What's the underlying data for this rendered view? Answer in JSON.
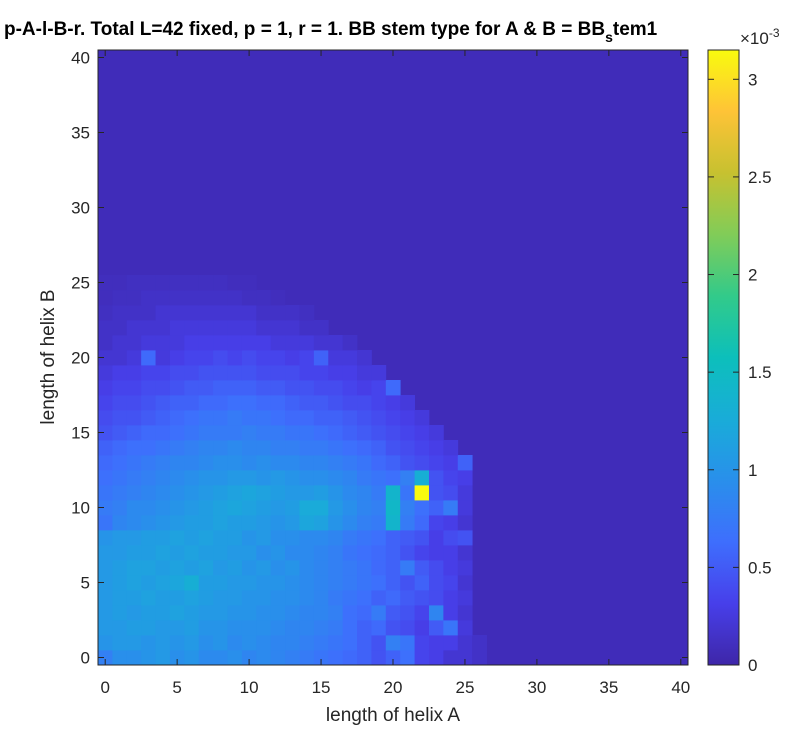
{
  "chart_data": {
    "type": "heatmap",
    "title": "p-A-l-B-r. Total L=42 fixed, p = 1,  r  = 1. BB stem type for A & B = BB",
    "title_sub": "s",
    "title_tail": "tem1",
    "xlabel": "length of helix A",
    "ylabel": "length of helix B",
    "xlim": [
      -0.5,
      40.5
    ],
    "ylim": [
      -0.5,
      40.5
    ],
    "xticks": [
      0,
      5,
      10,
      15,
      20,
      25,
      30,
      35,
      40
    ],
    "yticks": [
      0,
      5,
      10,
      15,
      20,
      25,
      30,
      35,
      40
    ],
    "colormap": "parula",
    "colorbar": {
      "clim": [
        0,
        3.15
      ],
      "ticks": [
        0,
        0.5,
        1,
        1.5,
        2,
        2.5,
        3
      ],
      "tick_labels": [
        "0",
        "0.5",
        "1",
        "1.5",
        "2",
        "2.5",
        "3"
      ],
      "exponent_label": "×10",
      "exponent_power": "-3"
    },
    "background_value": 0.08,
    "rows": [
      {
        "y": 0,
        "values": [
          0.8,
          0.95,
          0.95,
          1.0,
          1.05,
          0.95,
          1.0,
          0.9,
          0.9,
          0.95,
          0.85,
          0.9,
          0.85,
          0.8,
          0.75,
          0.7,
          0.65,
          0.6,
          0.55,
          0.45,
          0.55,
          0.65,
          0.35,
          0.3,
          0.2,
          0.2,
          0.15
        ]
      },
      {
        "y": 1,
        "values": [
          1.0,
          1.05,
          1.05,
          1.0,
          1.05,
          1.0,
          1.05,
          0.95,
          1.0,
          0.9,
          0.95,
          0.9,
          0.85,
          0.85,
          0.8,
          0.75,
          0.7,
          0.65,
          0.55,
          0.45,
          0.8,
          0.7,
          0.35,
          0.3,
          0.3,
          0.2,
          0.15
        ]
      },
      {
        "y": 2,
        "values": [
          1.05,
          1.05,
          1.1,
          1.1,
          1.05,
          1.05,
          1.1,
          1.0,
          1.0,
          0.95,
          0.95,
          0.95,
          0.9,
          0.85,
          0.85,
          0.8,
          0.75,
          0.65,
          0.55,
          0.6,
          0.45,
          0.4,
          0.3,
          0.5,
          0.7,
          0.25
        ]
      },
      {
        "y": 3,
        "values": [
          1.05,
          1.1,
          1.05,
          1.1,
          1.1,
          1.15,
          1.1,
          1.05,
          1.05,
          1.0,
          1.0,
          0.95,
          0.95,
          0.9,
          0.85,
          0.85,
          0.8,
          0.65,
          0.6,
          0.75,
          0.5,
          0.45,
          0.35,
          0.85,
          0.3,
          0.2
        ]
      },
      {
        "y": 4,
        "values": [
          1.05,
          1.1,
          1.1,
          1.15,
          1.1,
          1.1,
          1.15,
          1.1,
          1.05,
          1.05,
          1.0,
          1.0,
          0.95,
          0.95,
          0.9,
          0.85,
          0.75,
          0.7,
          0.65,
          0.55,
          0.6,
          0.5,
          0.45,
          0.4,
          0.3,
          0.25
        ]
      },
      {
        "y": 5,
        "values": [
          1.05,
          1.1,
          1.15,
          1.1,
          1.15,
          1.2,
          1.3,
          1.1,
          1.1,
          1.05,
          1.05,
          1.0,
          1.0,
          0.95,
          0.9,
          0.85,
          0.8,
          0.75,
          0.7,
          0.65,
          0.55,
          0.45,
          0.55,
          0.4,
          0.35,
          0.2
        ]
      },
      {
        "y": 6,
        "values": [
          1.05,
          1.1,
          1.15,
          1.15,
          1.1,
          1.15,
          1.1,
          1.15,
          1.05,
          1.1,
          1.0,
          1.05,
          0.95,
          1.0,
          0.9,
          0.85,
          0.8,
          0.75,
          0.7,
          0.6,
          0.55,
          0.75,
          0.5,
          0.4,
          0.3,
          0.25
        ]
      },
      {
        "y": 7,
        "values": [
          1.05,
          1.05,
          1.1,
          1.1,
          1.15,
          1.1,
          1.15,
          1.1,
          1.1,
          1.05,
          1.05,
          0.95,
          1.0,
          0.9,
          0.9,
          0.85,
          0.8,
          0.7,
          0.65,
          0.6,
          0.55,
          0.45,
          0.35,
          0.3,
          0.3,
          0.2
        ]
      },
      {
        "y": 8,
        "values": [
          1.0,
          1.05,
          1.05,
          1.1,
          1.1,
          1.15,
          1.1,
          1.15,
          1.1,
          1.1,
          1.0,
          1.05,
          0.95,
          0.95,
          0.9,
          0.9,
          0.85,
          0.75,
          0.7,
          0.65,
          0.55,
          0.5,
          0.45,
          0.3,
          0.4,
          0.45
        ]
      },
      {
        "y": 9,
        "values": [
          0.7,
          0.85,
          0.9,
          0.95,
          1.0,
          1.05,
          1.1,
          1.1,
          1.15,
          1.1,
          1.1,
          1.05,
          1.0,
          1.05,
          1.2,
          1.15,
          1.0,
          0.9,
          0.8,
          0.75,
          1.4,
          0.75,
          0.6,
          0.35,
          0.3,
          0.2
        ]
      },
      {
        "y": 10,
        "values": [
          0.75,
          0.8,
          0.9,
          0.9,
          0.95,
          1.0,
          1.05,
          1.1,
          1.15,
          1.2,
          1.15,
          1.1,
          1.05,
          1.1,
          1.25,
          1.25,
          1.05,
          0.95,
          0.85,
          0.8,
          1.45,
          0.8,
          0.65,
          0.55,
          0.75,
          0.25
        ]
      },
      {
        "y": 11,
        "values": [
          0.7,
          0.75,
          0.8,
          0.85,
          0.9,
          0.95,
          1.0,
          1.05,
          1.1,
          1.15,
          1.2,
          1.15,
          1.1,
          1.05,
          1.05,
          1.1,
          1.0,
          0.9,
          0.85,
          0.75,
          1.4,
          0.7,
          3.15,
          0.45,
          0.4,
          0.25
        ]
      },
      {
        "y": 12,
        "values": [
          0.65,
          0.7,
          0.75,
          0.8,
          0.85,
          0.9,
          0.95,
          1.0,
          1.0,
          1.05,
          1.05,
          1.0,
          1.05,
          1.0,
          0.95,
          0.95,
          0.9,
          0.85,
          0.75,
          0.7,
          0.65,
          0.8,
          1.3,
          0.45,
          0.35,
          0.3
        ]
      },
      {
        "y": 13,
        "values": [
          0.6,
          0.65,
          0.7,
          0.75,
          0.8,
          0.85,
          0.85,
          0.9,
          0.95,
          0.95,
          0.9,
          0.95,
          0.9,
          0.9,
          0.85,
          0.85,
          0.8,
          0.75,
          0.7,
          0.6,
          0.55,
          0.45,
          0.4,
          0.35,
          0.3,
          0.55
        ]
      },
      {
        "y": 14,
        "values": [
          0.55,
          0.6,
          0.65,
          0.65,
          0.7,
          0.75,
          0.8,
          0.85,
          0.85,
          0.9,
          0.85,
          0.85,
          0.8,
          0.8,
          0.75,
          0.75,
          0.7,
          0.65,
          0.6,
          0.55,
          0.45,
          0.4,
          0.35,
          0.3,
          0.25
        ]
      },
      {
        "y": 15,
        "values": [
          0.45,
          0.5,
          0.55,
          0.6,
          0.6,
          0.65,
          0.7,
          0.75,
          0.75,
          0.75,
          0.8,
          0.75,
          0.75,
          0.7,
          0.7,
          0.65,
          0.6,
          0.55,
          0.5,
          0.45,
          0.4,
          0.35,
          0.3,
          0.25
        ]
      },
      {
        "y": 16,
        "values": [
          0.4,
          0.45,
          0.45,
          0.5,
          0.55,
          0.6,
          0.65,
          0.7,
          0.7,
          0.75,
          0.7,
          0.7,
          0.65,
          0.6,
          0.6,
          0.55,
          0.55,
          0.5,
          0.45,
          0.4,
          0.35,
          0.3,
          0.25
        ]
      },
      {
        "y": 17,
        "values": [
          0.35,
          0.4,
          0.4,
          0.45,
          0.5,
          0.55,
          0.55,
          0.6,
          0.6,
          0.65,
          0.65,
          0.6,
          0.6,
          0.55,
          0.5,
          0.5,
          0.45,
          0.4,
          0.4,
          0.35,
          0.3,
          0.25
        ]
      },
      {
        "y": 18,
        "values": [
          0.3,
          0.35,
          0.35,
          0.4,
          0.4,
          0.45,
          0.5,
          0.5,
          0.55,
          0.55,
          0.55,
          0.5,
          0.5,
          0.45,
          0.45,
          0.4,
          0.4,
          0.35,
          0.3,
          0.35,
          0.6
        ]
      },
      {
        "y": 19,
        "values": [
          0.25,
          0.3,
          0.3,
          0.35,
          0.35,
          0.4,
          0.4,
          0.45,
          0.45,
          0.45,
          0.45,
          0.4,
          0.4,
          0.4,
          0.35,
          0.35,
          0.3,
          0.3,
          0.25,
          0.25
        ]
      },
      {
        "y": 20,
        "values": [
          0.2,
          0.2,
          0.25,
          0.6,
          0.25,
          0.3,
          0.35,
          0.35,
          0.4,
          0.35,
          0.4,
          0.35,
          0.35,
          0.3,
          0.35,
          0.55,
          0.25,
          0.25,
          0.2
        ]
      },
      {
        "y": 21,
        "values": [
          0.15,
          0.2,
          0.2,
          0.25,
          0.25,
          0.25,
          0.3,
          0.3,
          0.3,
          0.3,
          0.3,
          0.3,
          0.25,
          0.25,
          0.25,
          0.2,
          0.2,
          0.15
        ]
      },
      {
        "y": 22,
        "values": [
          0.15,
          0.15,
          0.2,
          0.2,
          0.2,
          0.25,
          0.25,
          0.25,
          0.25,
          0.25,
          0.25,
          0.2,
          0.2,
          0.2,
          0.15,
          0.15
        ]
      },
      {
        "y": 23,
        "values": [
          0.12,
          0.15,
          0.15,
          0.15,
          0.2,
          0.2,
          0.2,
          0.2,
          0.2,
          0.2,
          0.2,
          0.15,
          0.15,
          0.15,
          0.12
        ]
      },
      {
        "y": 24,
        "values": [
          0.1,
          0.12,
          0.12,
          0.15,
          0.15,
          0.15,
          0.15,
          0.15,
          0.15,
          0.15,
          0.12,
          0.12,
          0.1
        ]
      },
      {
        "y": 25,
        "values": [
          0.1,
          0.1,
          0.12,
          0.12,
          0.12,
          0.12,
          0.12,
          0.12,
          0.12,
          0.1,
          0.1
        ]
      }
    ]
  }
}
